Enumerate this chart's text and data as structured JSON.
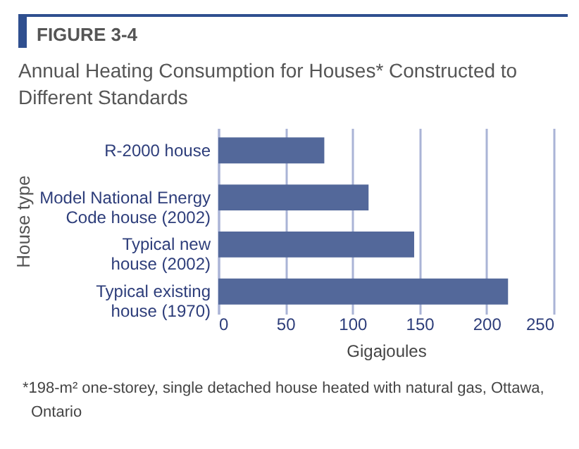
{
  "chart_data": {
    "type": "bar",
    "orientation": "horizontal",
    "subtitle": "FIGURE 3-4",
    "title": "Annual Heating Consumption for Houses* Constructed to Different Standards",
    "categories": [
      "R-2000 house",
      "Model National Energy Code house (2002)",
      "Typical new house (2002)",
      "Typical existing house (1970)"
    ],
    "values": [
      79,
      112,
      146,
      216
    ],
    "color": "#53689a",
    "xlabel": "Gigajoules",
    "ylabel": "House type",
    "xlim": [
      0,
      250
    ],
    "xticks": [
      0,
      50,
      100,
      150,
      200,
      250
    ],
    "grid": "x",
    "annotations": [
      "*198-m² one-storey, single detached house heated with natural gas, Ottawa, Ontario"
    ]
  }
}
